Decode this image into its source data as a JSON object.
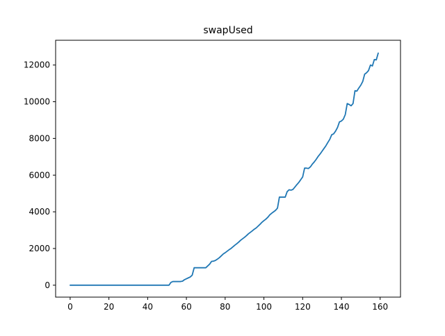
{
  "chart_data": {
    "type": "line",
    "title": "swapUsed",
    "xlabel": "",
    "ylabel": "",
    "xlim": [
      -7.5,
      170.5
    ],
    "ylim": [
      -650,
      13350
    ],
    "x_ticks": [
      0,
      20,
      40,
      60,
      80,
      100,
      120,
      140,
      160
    ],
    "y_ticks": [
      0,
      2000,
      4000,
      6000,
      8000,
      10000,
      12000
    ],
    "grid": false,
    "legend": "none",
    "series": [
      {
        "color": "#1f77b4",
        "points": [
          [
            0,
            0
          ],
          [
            10,
            0
          ],
          [
            20,
            0
          ],
          [
            30,
            0
          ],
          [
            40,
            0
          ],
          [
            51,
            0
          ],
          [
            52,
            150
          ],
          [
            53,
            200
          ],
          [
            54,
            200
          ],
          [
            55,
            200
          ],
          [
            56,
            200
          ],
          [
            57,
            200
          ],
          [
            58,
            220
          ],
          [
            59,
            300
          ],
          [
            60,
            350
          ],
          [
            61,
            400
          ],
          [
            62,
            450
          ],
          [
            63,
            550
          ],
          [
            64,
            950
          ],
          [
            65,
            950
          ],
          [
            66,
            950
          ],
          [
            67,
            950
          ],
          [
            68,
            950
          ],
          [
            69,
            950
          ],
          [
            70,
            950
          ],
          [
            71,
            1050
          ],
          [
            72,
            1150
          ],
          [
            73,
            1300
          ],
          [
            74,
            1310
          ],
          [
            75,
            1350
          ],
          [
            76,
            1420
          ],
          [
            77,
            1500
          ],
          [
            78,
            1600
          ],
          [
            79,
            1700
          ],
          [
            80,
            1770
          ],
          [
            81,
            1850
          ],
          [
            82,
            1930
          ],
          [
            83,
            2000
          ],
          [
            84,
            2090
          ],
          [
            85,
            2180
          ],
          [
            86,
            2260
          ],
          [
            87,
            2350
          ],
          [
            88,
            2450
          ],
          [
            89,
            2530
          ],
          [
            90,
            2610
          ],
          [
            91,
            2700
          ],
          [
            92,
            2800
          ],
          [
            93,
            2880
          ],
          [
            94,
            2960
          ],
          [
            95,
            3050
          ],
          [
            96,
            3120
          ],
          [
            97,
            3220
          ],
          [
            98,
            3320
          ],
          [
            99,
            3430
          ],
          [
            100,
            3520
          ],
          [
            101,
            3600
          ],
          [
            102,
            3700
          ],
          [
            103,
            3830
          ],
          [
            104,
            3920
          ],
          [
            105,
            4000
          ],
          [
            106,
            4080
          ],
          [
            107,
            4200
          ],
          [
            108,
            4800
          ],
          [
            109,
            4800
          ],
          [
            110,
            4800
          ],
          [
            111,
            4800
          ],
          [
            112,
            5100
          ],
          [
            113,
            5200
          ],
          [
            114,
            5180
          ],
          [
            115,
            5220
          ],
          [
            116,
            5350
          ],
          [
            117,
            5480
          ],
          [
            118,
            5600
          ],
          [
            119,
            5750
          ],
          [
            120,
            5900
          ],
          [
            121,
            6380
          ],
          [
            122,
            6380
          ],
          [
            123,
            6360
          ],
          [
            124,
            6450
          ],
          [
            125,
            6600
          ],
          [
            126,
            6720
          ],
          [
            127,
            6860
          ],
          [
            128,
            7020
          ],
          [
            129,
            7150
          ],
          [
            130,
            7300
          ],
          [
            131,
            7450
          ],
          [
            132,
            7600
          ],
          [
            133,
            7780
          ],
          [
            134,
            7950
          ],
          [
            135,
            8200
          ],
          [
            136,
            8250
          ],
          [
            137,
            8400
          ],
          [
            138,
            8600
          ],
          [
            139,
            8900
          ],
          [
            140,
            8950
          ],
          [
            141,
            9050
          ],
          [
            142,
            9300
          ],
          [
            143,
            9900
          ],
          [
            144,
            9850
          ],
          [
            145,
            9780
          ],
          [
            146,
            9900
          ],
          [
            147,
            10600
          ],
          [
            148,
            10580
          ],
          [
            149,
            10750
          ],
          [
            150,
            10900
          ],
          [
            151,
            11100
          ],
          [
            152,
            11500
          ],
          [
            153,
            11580
          ],
          [
            154,
            11700
          ],
          [
            155,
            12000
          ],
          [
            156,
            11950
          ],
          [
            157,
            12300
          ],
          [
            158,
            12280
          ],
          [
            159,
            12650
          ]
        ]
      }
    ]
  }
}
